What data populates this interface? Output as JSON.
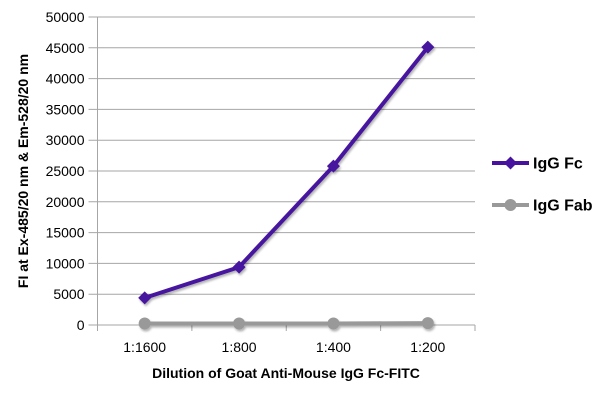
{
  "chart_data": {
    "type": "line",
    "title": "",
    "xlabel": "Dilution of Goat Anti-Mouse IgG Fc-FITC",
    "ylabel": "FI at Ex-485/20 nm & Em-528/20 nm",
    "categories": [
      "1:1600",
      "1:800",
      "1:400",
      "1:200"
    ],
    "series": [
      {
        "name": "IgG Fc",
        "color": "#46129E",
        "marker": "diamond",
        "values": [
          4400,
          9400,
          25800,
          45100
        ]
      },
      {
        "name": "IgG Fab",
        "color": "#999999",
        "marker": "circle",
        "values": [
          250,
          250,
          250,
          300
        ]
      }
    ],
    "ylim": [
      0,
      50000
    ],
    "y_tick_step": 5000,
    "grid": "horizontal",
    "legend_position": "right",
    "grid_color": "#A6A6A6",
    "axis_color": "#A6A6A6",
    "text_color": "#000000",
    "background": "#FFFFFF"
  }
}
